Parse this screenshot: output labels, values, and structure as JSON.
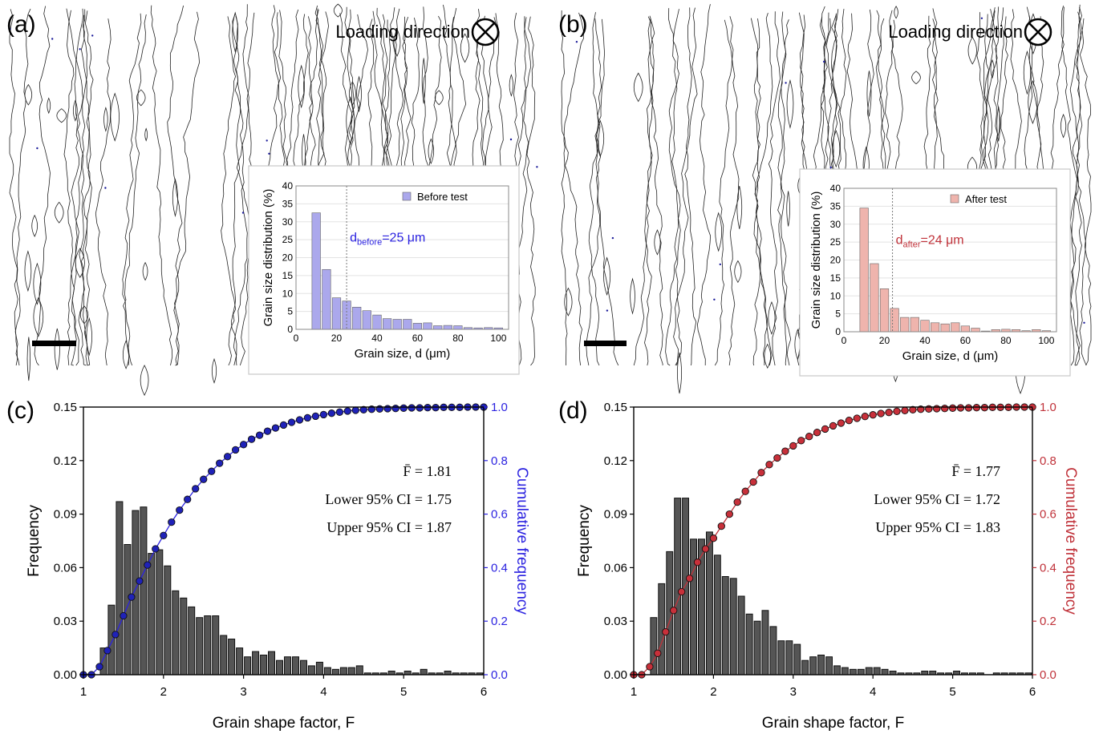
{
  "panels": {
    "a": {
      "label": "(a)",
      "loading_direction": "Loading direction",
      "micrograph": "EBSD grain boundary map (before test)"
    },
    "b": {
      "label": "(b)",
      "loading_direction": "Loading direction",
      "micrograph": "EBSD grain boundary map (after test)"
    },
    "c": {
      "label": "(c)"
    },
    "d": {
      "label": "(d)"
    }
  },
  "colors": {
    "blue_bar": "#ABA8EC",
    "blue_line": "#2B22E0",
    "red_bar": "#EFB4AD",
    "red_line": "#C0323A",
    "gray_bar": "#555555"
  },
  "chart_data": [
    {
      "id": "a-inset",
      "type": "bar",
      "legend": "Before test",
      "legend_position": "top-right",
      "annotation": {
        "main": "d",
        "sub": "before",
        "rest": "=25 μm"
      },
      "xlabel": "Grain size, d (μm)",
      "ylabel": "Grain size distribution (%)",
      "xlim": [
        0,
        105
      ],
      "ylim": [
        0,
        40
      ],
      "xticks": [
        0,
        20,
        40,
        60,
        80,
        100
      ],
      "yticks": [
        0,
        5,
        10,
        15,
        20,
        25,
        30,
        35,
        40
      ],
      "mean_line_x": 25,
      "x": [
        10,
        15,
        20,
        25,
        30,
        35,
        40,
        45,
        50,
        55,
        60,
        65,
        70,
        75,
        80,
        85,
        90,
        95,
        100
      ],
      "values": [
        32.5,
        16.7,
        8.8,
        7.9,
        6.2,
        5.2,
        4.0,
        3.0,
        2.8,
        2.8,
        1.7,
        1.8,
        1.0,
        1.1,
        1.0,
        0.5,
        0.4,
        0.5,
        0.4
      ]
    },
    {
      "id": "b-inset",
      "type": "bar",
      "legend": "After test",
      "legend_position": "top-right",
      "annotation": {
        "main": "d",
        "sub": "after",
        "rest": "=24 μm"
      },
      "xlabel": "Grain size, d (μm)",
      "ylabel": "Grain size distribution (%)",
      "xlim": [
        0,
        105
      ],
      "ylim": [
        0,
        40
      ],
      "xticks": [
        0,
        20,
        40,
        60,
        80,
        100
      ],
      "yticks": [
        0,
        5,
        10,
        15,
        20,
        25,
        30,
        35,
        40
      ],
      "mean_line_x": 24,
      "x": [
        10,
        15,
        20,
        25,
        30,
        35,
        40,
        45,
        50,
        55,
        60,
        65,
        70,
        75,
        80,
        85,
        90,
        95,
        100
      ],
      "values": [
        34.5,
        19.0,
        12.0,
        6.5,
        4.0,
        4.0,
        3.2,
        2.5,
        2.2,
        2.5,
        1.6,
        1.0,
        0.2,
        0.6,
        0.7,
        0.6,
        0.3,
        0.6,
        0.3
      ]
    },
    {
      "id": "c-main",
      "type": "bar",
      "xlabel": "Grain shape factor, F",
      "ylabel": "Frequency",
      "y2label": "Cumulative frequency",
      "xlim": [
        1,
        6
      ],
      "ylim": [
        0,
        0.15
      ],
      "y2lim": [
        0,
        1.0
      ],
      "xticks": [
        1,
        2,
        3,
        4,
        5,
        6
      ],
      "yticks": [
        "0.00",
        "0.03",
        "0.06",
        "0.09",
        "0.12",
        "0.15"
      ],
      "y2ticks": [
        "0.0",
        "0.2",
        "0.4",
        "0.6",
        "0.8",
        "1.0"
      ],
      "stats": [
        "F̄ = 1.81",
        "Lower 95% CI = 1.75",
        "Upper 95% CI = 1.87"
      ],
      "bin_start": 1.0,
      "bin_width": 0.1,
      "values": [
        0.0,
        0.0,
        0.015,
        0.039,
        0.097,
        0.073,
        0.092,
        0.094,
        0.068,
        0.07,
        0.061,
        0.047,
        0.043,
        0.038,
        0.032,
        0.033,
        0.033,
        0.022,
        0.02,
        0.015,
        0.01,
        0.013,
        0.011,
        0.013,
        0.008,
        0.01,
        0.01,
        0.008,
        0.005,
        0.007,
        0.004,
        0.003,
        0.004,
        0.004,
        0.005,
        0.001,
        0.001,
        0.001,
        0.002,
        0.001,
        0.002,
        0.001,
        0.003,
        0.001,
        0.001,
        0.002,
        0.001,
        0.001,
        0.001,
        0.001
      ],
      "cumulative": [
        0.0,
        0.0,
        0.03,
        0.09,
        0.15,
        0.22,
        0.29,
        0.35,
        0.41,
        0.47,
        0.52,
        0.57,
        0.615,
        0.655,
        0.695,
        0.73,
        0.76,
        0.79,
        0.815,
        0.84,
        0.86,
        0.88,
        0.895,
        0.91,
        0.922,
        0.933,
        0.943,
        0.952,
        0.96,
        0.966,
        0.972,
        0.977,
        0.981,
        0.985,
        0.988,
        0.99,
        0.992,
        0.993,
        0.994,
        0.995,
        0.996,
        0.997,
        0.997,
        0.998,
        0.998,
        0.999,
        0.999,
        0.999,
        1.0,
        1.0,
        1.0
      ]
    },
    {
      "id": "d-main",
      "type": "bar",
      "xlabel": "Grain shape factor, F",
      "ylabel": "Frequency",
      "y2label": "Cumulative frequency",
      "xlim": [
        1,
        6
      ],
      "ylim": [
        0,
        0.15
      ],
      "y2lim": [
        0,
        1.0
      ],
      "xticks": [
        1,
        2,
        3,
        4,
        5,
        6
      ],
      "yticks": [
        "0.00",
        "0.03",
        "0.06",
        "0.09",
        "0.12",
        "0.15"
      ],
      "y2ticks": [
        "0.0",
        "0.2",
        "0.4",
        "0.6",
        "0.8",
        "1.0"
      ],
      "stats": [
        "F̄ = 1.77",
        "Lower 95% CI = 1.72",
        "Upper 95% CI = 1.83"
      ],
      "bin_start": 1.0,
      "bin_width": 0.1,
      "values": [
        0.0,
        0.0,
        0.032,
        0.051,
        0.069,
        0.099,
        0.099,
        0.076,
        0.076,
        0.08,
        0.067,
        0.055,
        0.054,
        0.044,
        0.034,
        0.03,
        0.036,
        0.027,
        0.019,
        0.019,
        0.017,
        0.008,
        0.01,
        0.011,
        0.01,
        0.005,
        0.004,
        0.003,
        0.003,
        0.004,
        0.004,
        0.003,
        0.002,
        0.001,
        0.001,
        0.001,
        0.002,
        0.002,
        0.001,
        0.001,
        0.002,
        0.001,
        0.001,
        0.001,
        0.0,
        0.001,
        0.001,
        0.001,
        0.001,
        0.001
      ],
      "cumulative": [
        0.0,
        0.0,
        0.03,
        0.08,
        0.16,
        0.24,
        0.31,
        0.36,
        0.42,
        0.47,
        0.51,
        0.555,
        0.6,
        0.645,
        0.685,
        0.72,
        0.755,
        0.785,
        0.81,
        0.835,
        0.855,
        0.875,
        0.89,
        0.905,
        0.918,
        0.93,
        0.94,
        0.95,
        0.958,
        0.965,
        0.971,
        0.976,
        0.98,
        0.984,
        0.987,
        0.99,
        0.992,
        0.993,
        0.994,
        0.995,
        0.996,
        0.997,
        0.997,
        0.998,
        0.998,
        0.999,
        0.999,
        0.999,
        1.0,
        1.0,
        1.0
      ]
    }
  ]
}
